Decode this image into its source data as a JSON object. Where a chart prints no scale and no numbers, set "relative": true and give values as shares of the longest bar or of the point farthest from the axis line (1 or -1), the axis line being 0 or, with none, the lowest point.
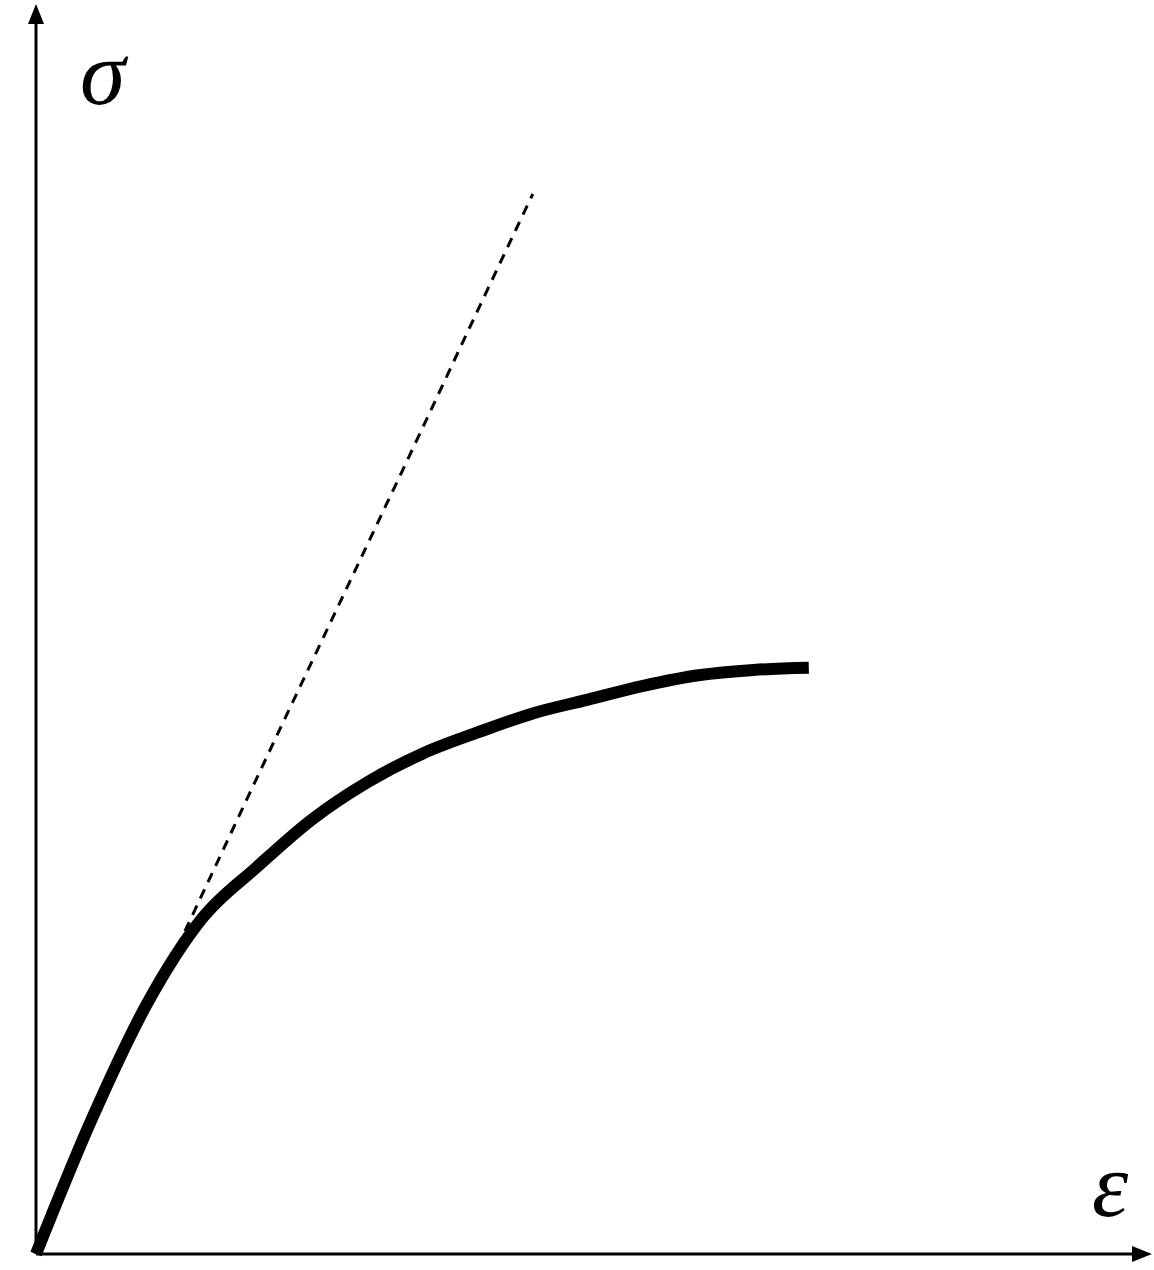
{
  "chart_data": {
    "type": "line",
    "relative": true,
    "xlabel": "ε",
    "ylabel": "σ",
    "marker": "none",
    "categories": [
      null,
      null,
      null,
      null,
      null,
      null,
      null,
      null,
      null,
      null,
      null,
      null,
      null,
      null,
      null
    ],
    "series": [
      {
        "color": "#000000",
        "line_style": "solid",
        "values": [
          0,
          0.126,
          0.235,
          0.316,
          0.365,
          0.41,
          0.445,
          0.472,
          0.492,
          0.51,
          0.523,
          0.536,
          0.546,
          0.551,
          0.553
        ]
      },
      {
        "color": "#000000",
        "line_style": "dashed",
        "values": [
          null,
          null,
          0.228,
          0.338,
          0.449,
          0.559,
          0.669,
          0.779,
          0.89,
          1,
          null,
          null,
          null,
          null,
          null
        ]
      }
    ]
  }
}
